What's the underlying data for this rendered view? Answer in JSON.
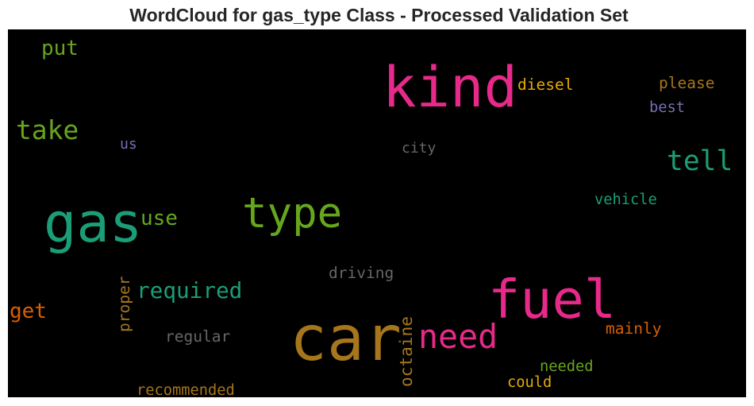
{
  "title": "WordCloud for gas_type Class - Processed Validation Set",
  "chart_data": {
    "type": "wordcloud",
    "title": "WordCloud for gas_type Class - Processed Validation Set",
    "background": "#000000",
    "words": [
      {
        "text": "car",
        "weight": 1.0,
        "color": "#a6761d",
        "orientation": "horizontal"
      },
      {
        "text": "kind",
        "weight": 0.92,
        "color": "#e7298a",
        "orientation": "horizontal"
      },
      {
        "text": "gas",
        "weight": 0.9,
        "color": "#1b9e77",
        "orientation": "horizontal"
      },
      {
        "text": "fuel",
        "weight": 0.88,
        "color": "#e7298a",
        "orientation": "horizontal"
      },
      {
        "text": "type",
        "weight": 0.72,
        "color": "#66a61e",
        "orientation": "horizontal"
      },
      {
        "text": "need",
        "weight": 0.6,
        "color": "#e7298a",
        "orientation": "horizontal"
      },
      {
        "text": "tell",
        "weight": 0.52,
        "color": "#1b9e77",
        "orientation": "horizontal"
      },
      {
        "text": "take",
        "weight": 0.5,
        "color": "#66a61e",
        "orientation": "horizontal"
      },
      {
        "text": "required",
        "weight": 0.44,
        "color": "#1b9e77",
        "orientation": "horizontal"
      },
      {
        "text": "get",
        "weight": 0.42,
        "color": "#d95f02",
        "orientation": "horizontal"
      },
      {
        "text": "put",
        "weight": 0.42,
        "color": "#66a61e",
        "orientation": "horizontal"
      },
      {
        "text": "use",
        "weight": 0.42,
        "color": "#66a61e",
        "orientation": "horizontal"
      },
      {
        "text": "octaine",
        "weight": 0.36,
        "color": "#a6761d",
        "orientation": "vertical"
      },
      {
        "text": "diesel",
        "weight": 0.34,
        "color": "#e6ab02",
        "orientation": "horizontal"
      },
      {
        "text": "please",
        "weight": 0.34,
        "color": "#a6761d",
        "orientation": "horizontal"
      },
      {
        "text": "driving",
        "weight": 0.34,
        "color": "#666666",
        "orientation": "horizontal"
      },
      {
        "text": "regular",
        "weight": 0.34,
        "color": "#666666",
        "orientation": "horizontal"
      },
      {
        "text": "mainly",
        "weight": 0.34,
        "color": "#d95f02",
        "orientation": "horizontal"
      },
      {
        "text": "proper",
        "weight": 0.34,
        "color": "#a6761d",
        "orientation": "vertical"
      },
      {
        "text": "vehicle",
        "weight": 0.33,
        "color": "#1b9e77",
        "orientation": "horizontal"
      },
      {
        "text": "recommended",
        "weight": 0.33,
        "color": "#a6761d",
        "orientation": "horizontal"
      },
      {
        "text": "needed",
        "weight": 0.33,
        "color": "#66a61e",
        "orientation": "horizontal"
      },
      {
        "text": "could",
        "weight": 0.33,
        "color": "#e6ab02",
        "orientation": "horizontal"
      },
      {
        "text": "best",
        "weight": 0.33,
        "color": "#7570b3",
        "orientation": "horizontal"
      },
      {
        "text": "city",
        "weight": 0.32,
        "color": "#666666",
        "orientation": "horizontal"
      },
      {
        "text": "us",
        "weight": 0.32,
        "color": "#7570b3",
        "orientation": "horizontal"
      }
    ]
  }
}
